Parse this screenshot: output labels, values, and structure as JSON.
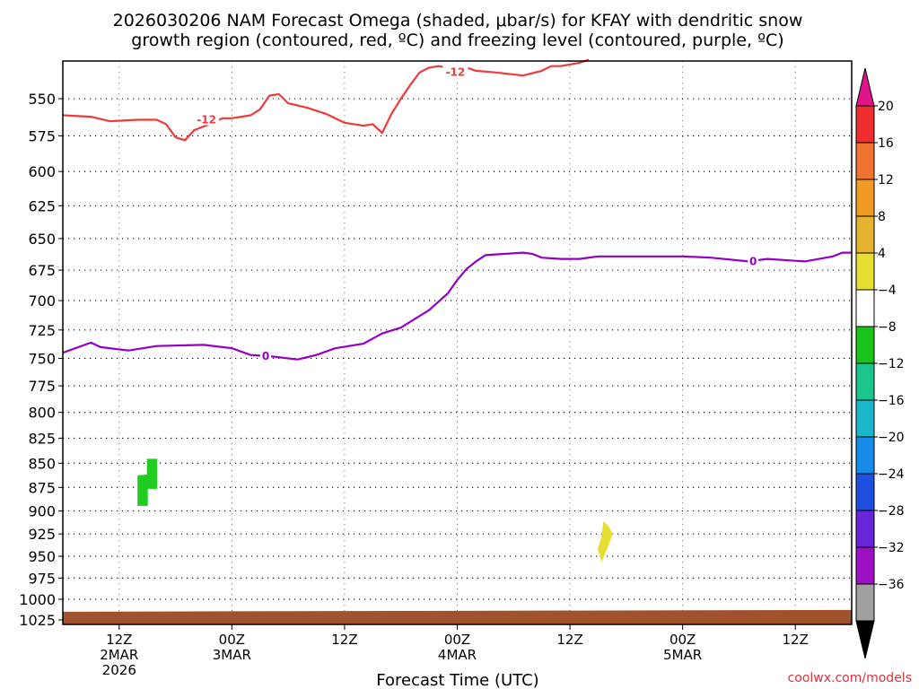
{
  "chart_data": {
    "type": "line",
    "title_lines": [
      "2026030206 NAM Forecast Omega (shaded, μbar/s) for KFAY with dendritic snow",
      "growth region (contoured, red, ºC) and freezing level (contoured, purple, ºC)"
    ],
    "xlabel": "Forecast Time (UTC)",
    "ylabel": "",
    "y_scale": "log-pressure",
    "y_inverted": true,
    "ylim": [
      1025,
      525
    ],
    "y_ticks": [
      550,
      575,
      600,
      625,
      650,
      675,
      700,
      725,
      750,
      775,
      800,
      825,
      850,
      875,
      900,
      925,
      950,
      975,
      1000,
      1025
    ],
    "xlim": [
      6,
      90
    ],
    "x_ticks": [
      {
        "hour": 12,
        "lines": [
          "12Z",
          "2MAR",
          "2026"
        ]
      },
      {
        "hour": 24,
        "lines": [
          "00Z",
          "3MAR"
        ]
      },
      {
        "hour": 36,
        "lines": [
          "12Z"
        ]
      },
      {
        "hour": 48,
        "lines": [
          "00Z",
          "4MAR"
        ]
      },
      {
        "hour": 60,
        "lines": [
          "12Z"
        ]
      },
      {
        "hour": 72,
        "lines": [
          "00Z",
          "5MAR"
        ]
      },
      {
        "hour": 84,
        "lines": [
          "12Z"
        ]
      }
    ],
    "grid": true,
    "series": [
      {
        "contour_label": "0",
        "color": "#9400c8",
        "label_at": [
          [
            27.6,
            748
          ],
          [
            79.5,
            668
          ]
        ],
        "points": [
          [
            6,
            745
          ],
          [
            9,
            736
          ],
          [
            10,
            740
          ],
          [
            13,
            743
          ],
          [
            16,
            739
          ],
          [
            21,
            738
          ],
          [
            24,
            741
          ],
          [
            26,
            747
          ],
          [
            28,
            748
          ],
          [
            31,
            751
          ],
          [
            33,
            747
          ],
          [
            35,
            741
          ],
          [
            38,
            737
          ],
          [
            40,
            728
          ],
          [
            42,
            723
          ],
          [
            45,
            708
          ],
          [
            47,
            694
          ],
          [
            48,
            683
          ],
          [
            49,
            674
          ],
          [
            50,
            668
          ],
          [
            51,
            663
          ],
          [
            53,
            662
          ],
          [
            55,
            661
          ],
          [
            56,
            662
          ],
          [
            57,
            665
          ],
          [
            59,
            666
          ],
          [
            61,
            666
          ],
          [
            63,
            664
          ],
          [
            67,
            664
          ],
          [
            72,
            664
          ],
          [
            75,
            665
          ],
          [
            79,
            668
          ],
          [
            81,
            666
          ],
          [
            85,
            668
          ],
          [
            88,
            664
          ],
          [
            89,
            661
          ],
          [
            90,
            661
          ]
        ]
      },
      {
        "contour_label": "-12",
        "color": "#ee3a38",
        "label_at": [
          [
            21.3,
            564
          ],
          [
            47.8,
            533
          ]
        ],
        "points": [
          [
            6,
            561
          ],
          [
            9,
            562
          ],
          [
            11,
            565
          ],
          [
            14,
            564
          ],
          [
            16,
            564
          ],
          [
            17,
            567
          ],
          [
            18,
            576
          ],
          [
            19,
            578
          ],
          [
            20,
            571
          ],
          [
            22,
            566
          ],
          [
            23,
            563
          ],
          [
            24,
            563
          ],
          [
            26,
            561
          ],
          [
            27,
            557
          ],
          [
            28,
            548
          ],
          [
            29,
            547
          ],
          [
            30,
            553
          ],
          [
            32,
            556
          ],
          [
            34,
            560
          ],
          [
            36,
            566
          ],
          [
            38,
            568
          ],
          [
            39,
            567
          ],
          [
            40,
            573
          ],
          [
            41,
            560
          ],
          [
            42,
            550
          ],
          [
            43,
            541
          ],
          [
            44,
            533
          ],
          [
            45,
            530
          ],
          [
            46,
            529
          ],
          [
            48,
            531
          ],
          [
            49,
            530
          ],
          [
            50,
            532
          ],
          [
            52,
            533
          ],
          [
            55,
            535
          ],
          [
            57,
            532
          ],
          [
            58,
            529
          ],
          [
            59,
            529
          ],
          [
            61,
            527
          ],
          [
            62,
            525
          ]
        ]
      }
    ],
    "shaded_areas": [
      {
        "value": -6,
        "color": "#20cc20",
        "parts": [
          [
            [
              14.0,
              863
            ],
            [
              15.0,
              862
            ],
            [
              15.0,
              846
            ],
            [
              16.0,
              846
            ],
            [
              16.0,
              876
            ],
            [
              15.0,
              876
            ],
            [
              15.0,
              894
            ],
            [
              14.0,
              894
            ]
          ]
        ]
      },
      {
        "value": 6,
        "color": "#e6df32",
        "parts": [
          [
            [
              63.0,
              942
            ],
            [
              63.4,
              929
            ],
            [
              63.6,
              912
            ],
            [
              64.1,
              917
            ],
            [
              64.5,
              925
            ],
            [
              64.0,
              939
            ],
            [
              63.4,
              955
            ]
          ]
        ]
      }
    ],
    "terrain": {
      "color": "#a0522d",
      "top_pressure": 1015
    },
    "colorbar": {
      "ticks": [
        "20",
        "16",
        "12",
        "8",
        "4",
        "−4",
        "−8",
        "−12",
        "−16",
        "−20",
        "−24",
        "−28",
        "−32",
        "−36"
      ],
      "top_arrow_color": "#e0158a",
      "bottom_arrow_color": "#000000",
      "colors": [
        "#ee2e2e",
        "#f07230",
        "#f19a24",
        "#e6b431",
        "#e6df32",
        "#ffffff",
        "#19c419",
        "#1cc48e",
        "#1ab6ca",
        "#168ce8",
        "#1e4fe0",
        "#6826d8",
        "#9e10c4",
        "#a0a0a0"
      ]
    }
  },
  "watermark": "coolwx.com/models"
}
